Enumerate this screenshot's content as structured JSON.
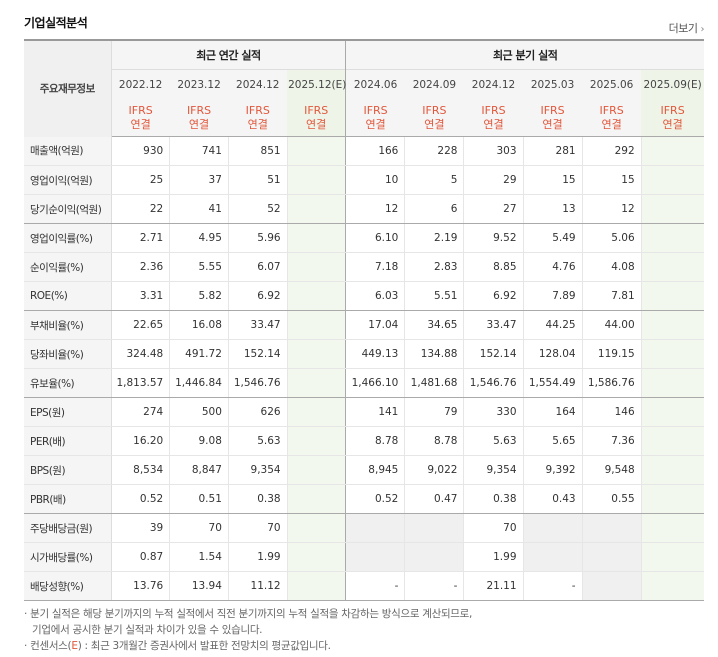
{
  "header": {
    "title": "기업실적분석",
    "more_label": "더보기",
    "more_arrow": "›"
  },
  "table": {
    "label_header": "주요재무정보",
    "group_annual": "최근 연간 실적",
    "group_quarter": "최근 분기 실적",
    "periods": [
      "2022.12",
      "2023.12",
      "2024.12",
      "2025.12(E)",
      "2024.06",
      "2024.09",
      "2024.12",
      "2025.03",
      "2025.06",
      "2025.09(E)"
    ],
    "standard_top": "IFRS",
    "standard_bottom": "연결",
    "rows": [
      {
        "label": "매출액(억원)",
        "values": [
          "930",
          "741",
          "851",
          "",
          "166",
          "228",
          "303",
          "281",
          "292",
          ""
        ]
      },
      {
        "label": "영업이익(억원)",
        "values": [
          "25",
          "37",
          "51",
          "",
          "10",
          "5",
          "29",
          "15",
          "15",
          ""
        ]
      },
      {
        "label": "당기순이익(억원)",
        "values": [
          "22",
          "41",
          "52",
          "",
          "12",
          "6",
          "27",
          "13",
          "12",
          ""
        ]
      },
      {
        "label": "영업이익률(%)",
        "values": [
          "2.71",
          "4.95",
          "5.96",
          "",
          "6.10",
          "2.19",
          "9.52",
          "5.49",
          "5.06",
          ""
        ]
      },
      {
        "label": "순이익률(%)",
        "values": [
          "2.36",
          "5.55",
          "6.07",
          "",
          "7.18",
          "2.83",
          "8.85",
          "4.76",
          "4.08",
          ""
        ]
      },
      {
        "label": "ROE(%)",
        "values": [
          "3.31",
          "5.82",
          "6.92",
          "",
          "6.03",
          "5.51",
          "6.92",
          "7.89",
          "7.81",
          ""
        ]
      },
      {
        "label": "부채비율(%)",
        "values": [
          "22.65",
          "16.08",
          "33.47",
          "",
          "17.04",
          "34.65",
          "33.47",
          "44.25",
          "44.00",
          ""
        ]
      },
      {
        "label": "당좌비율(%)",
        "values": [
          "324.48",
          "491.72",
          "152.14",
          "",
          "449.13",
          "134.88",
          "152.14",
          "128.04",
          "119.15",
          ""
        ]
      },
      {
        "label": "유보율(%)",
        "values": [
          "1,813.57",
          "1,446.84",
          "1,546.76",
          "",
          "1,466.10",
          "1,481.68",
          "1,546.76",
          "1,554.49",
          "1,586.76",
          ""
        ]
      },
      {
        "label": "EPS(원)",
        "values": [
          "274",
          "500",
          "626",
          "",
          "141",
          "79",
          "330",
          "164",
          "146",
          ""
        ]
      },
      {
        "label": "PER(배)",
        "values": [
          "16.20",
          "9.08",
          "5.63",
          "",
          "8.78",
          "8.78",
          "5.63",
          "5.65",
          "7.36",
          ""
        ]
      },
      {
        "label": "BPS(원)",
        "values": [
          "8,534",
          "8,847",
          "9,354",
          "",
          "8,945",
          "9,022",
          "9,354",
          "9,392",
          "9,548",
          ""
        ]
      },
      {
        "label": "PBR(배)",
        "values": [
          "0.52",
          "0.51",
          "0.38",
          "",
          "0.52",
          "0.47",
          "0.38",
          "0.43",
          "0.55",
          ""
        ]
      },
      {
        "label": "주당배당금(원)",
        "values": [
          "39",
          "70",
          "70",
          "",
          "",
          "",
          "70",
          "",
          "",
          ""
        ]
      },
      {
        "label": "시가배당률(%)",
        "values": [
          "0.87",
          "1.54",
          "1.99",
          "",
          "",
          "",
          "1.99",
          "",
          "",
          ""
        ]
      },
      {
        "label": "배당성향(%)",
        "values": [
          "13.76",
          "13.94",
          "11.12",
          "",
          "-",
          "-",
          "21.11",
          "-",
          "",
          ""
        ]
      }
    ]
  },
  "notes": {
    "line1": "분기 실적은 해당 분기까지의 누적 실적에서 직전 분기까지의 누적 실적을 차감하는 방식으로 계산되므로,",
    "line2": "기업에서 공시한 분기 실적과 차이가 있을 수 있습니다.",
    "line3_prefix": "컨센서스(",
    "line3_mark": "E",
    "line3_suffix": ") : 최근 3개월간 증권사에서 발표한 전망치의 평균값입니다.",
    "bullet": "·"
  },
  "colors": {
    "ifrs": "#e2573b",
    "estimate_bg": "#f3f8ee",
    "header_bg": "#f5f5f5"
  }
}
